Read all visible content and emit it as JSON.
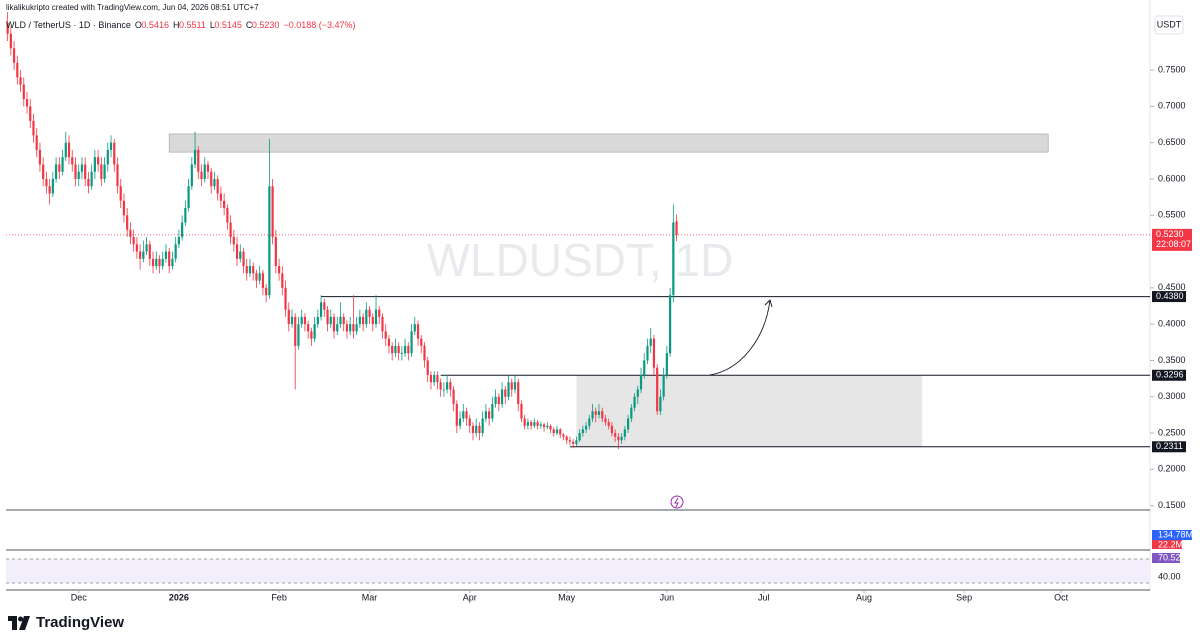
{
  "chart_data": {
    "type": "candlestick",
    "author_line": "likalikukripto created with TradingView.com, Jun 04, 2026 08:51 UTC+7",
    "symbol": "WLD / TetherUS · 1D · Binance",
    "ohlc": [
      {
        "key": "O",
        "value": "0.5416"
      },
      {
        "key": "H",
        "value": "0.5511"
      },
      {
        "key": "L",
        "value": "0.5145"
      },
      {
        "key": "C",
        "value": "0.5230"
      }
    ],
    "change": "−0.0188 (−3.47%)",
    "watermark": "WLDUSDT, 1D",
    "currency": "USDT",
    "brand": "TradingView",
    "up_color": "#089981",
    "down_color": "#f23645",
    "xlim": [
      -0.5,
      353.5
    ],
    "xticks": [
      {
        "value": 22,
        "label": "Dec"
      },
      {
        "value": 53,
        "label": "2026"
      },
      {
        "value": 84,
        "label": "Feb"
      },
      {
        "value": 112,
        "label": "Mar"
      },
      {
        "value": 143,
        "label": "Apr"
      },
      {
        "value": 173,
        "label": "May"
      },
      {
        "value": 204,
        "label": "Jun"
      },
      {
        "value": 234,
        "label": "Jul"
      },
      {
        "value": 265,
        "label": "Aug"
      },
      {
        "value": 296,
        "label": "Sep"
      },
      {
        "value": 326,
        "label": "Oct"
      }
    ],
    "ylim": [
      0.144,
      0.83
    ],
    "yticks": [
      {
        "value": 0.15,
        "label": "0.1500"
      },
      {
        "value": 0.2,
        "label": "0.2000"
      },
      {
        "value": 0.25,
        "label": "0.2500"
      },
      {
        "value": 0.3,
        "label": "0.3000"
      },
      {
        "value": 0.35,
        "label": "0.3500"
      },
      {
        "value": 0.4,
        "label": "0.4000"
      },
      {
        "value": 0.45,
        "label": "0.4500"
      },
      {
        "value": 0.55,
        "label": "0.5500"
      },
      {
        "value": 0.6,
        "label": "0.6000"
      },
      {
        "value": 0.65,
        "label": "0.6500"
      },
      {
        "value": 0.7,
        "label": "0.7000"
      },
      {
        "value": 0.75,
        "label": "0.7500"
      }
    ],
    "last": {
      "value": 0.523,
      "label": "0.5230",
      "countdown": "22:08:07"
    },
    "levels": [
      {
        "value": 0.438,
        "label": "0.4380",
        "from": 97
      },
      {
        "value": 0.3296,
        "label": "0.3296",
        "from": 134
      },
      {
        "value": 0.2311,
        "label": "0.2311",
        "from": 174
      }
    ],
    "zones": [
      {
        "from": 50,
        "to": 322,
        "top": 0.662,
        "bottom": 0.637
      },
      {
        "from": 176,
        "to": 283,
        "top": 0.3296,
        "bottom": 0.2311
      }
    ],
    "pane_labels": {
      "volume_ma": "134.78M",
      "volume": "22.2M",
      "rsi": "70.52",
      "rsi_level": "40.00"
    },
    "candles": [
      [
        0.815,
        0.83,
        0.79,
        0.8
      ],
      [
        0.8,
        0.81,
        0.77,
        0.78
      ],
      [
        0.78,
        0.79,
        0.75,
        0.76
      ],
      [
        0.76,
        0.77,
        0.73,
        0.74
      ],
      [
        0.74,
        0.75,
        0.72,
        0.73
      ],
      [
        0.73,
        0.74,
        0.7,
        0.71
      ],
      [
        0.71,
        0.72,
        0.69,
        0.7
      ],
      [
        0.7,
        0.71,
        0.67,
        0.68
      ],
      [
        0.68,
        0.69,
        0.65,
        0.66
      ],
      [
        0.66,
        0.67,
        0.63,
        0.64
      ],
      [
        0.64,
        0.65,
        0.61,
        0.62
      ],
      [
        0.62,
        0.63,
        0.59,
        0.6
      ],
      [
        0.6,
        0.61,
        0.58,
        0.59
      ],
      [
        0.59,
        0.6,
        0.565,
        0.58
      ],
      [
        0.58,
        0.61,
        0.575,
        0.6
      ],
      [
        0.6,
        0.63,
        0.595,
        0.62
      ],
      [
        0.62,
        0.63,
        0.6,
        0.61
      ],
      [
        0.61,
        0.64,
        0.605,
        0.63
      ],
      [
        0.63,
        0.665,
        0.625,
        0.65
      ],
      [
        0.65,
        0.66,
        0.62,
        0.63
      ],
      [
        0.63,
        0.64,
        0.61,
        0.62
      ],
      [
        0.62,
        0.63,
        0.59,
        0.6
      ],
      [
        0.6,
        0.62,
        0.59,
        0.61
      ],
      [
        0.61,
        0.63,
        0.6,
        0.62
      ],
      [
        0.62,
        0.63,
        0.59,
        0.6
      ],
      [
        0.6,
        0.61,
        0.58,
        0.59
      ],
      [
        0.59,
        0.62,
        0.585,
        0.61
      ],
      [
        0.61,
        0.64,
        0.6,
        0.63
      ],
      [
        0.63,
        0.64,
        0.61,
        0.62
      ],
      [
        0.62,
        0.63,
        0.59,
        0.6
      ],
      [
        0.6,
        0.63,
        0.595,
        0.62
      ],
      [
        0.62,
        0.65,
        0.61,
        0.64
      ],
      [
        0.64,
        0.66,
        0.63,
        0.65
      ],
      [
        0.65,
        0.655,
        0.61,
        0.62
      ],
      [
        0.62,
        0.63,
        0.58,
        0.59
      ],
      [
        0.59,
        0.6,
        0.56,
        0.57
      ],
      [
        0.57,
        0.58,
        0.54,
        0.55
      ],
      [
        0.55,
        0.56,
        0.52,
        0.53
      ],
      [
        0.53,
        0.54,
        0.51,
        0.52
      ],
      [
        0.52,
        0.53,
        0.5,
        0.51
      ],
      [
        0.51,
        0.52,
        0.49,
        0.5
      ],
      [
        0.5,
        0.51,
        0.475,
        0.49
      ],
      [
        0.49,
        0.515,
        0.485,
        0.5
      ],
      [
        0.5,
        0.52,
        0.495,
        0.51
      ],
      [
        0.51,
        0.515,
        0.48,
        0.49
      ],
      [
        0.49,
        0.5,
        0.47,
        0.48
      ],
      [
        0.48,
        0.5,
        0.475,
        0.49
      ],
      [
        0.49,
        0.495,
        0.47,
        0.48
      ],
      [
        0.48,
        0.5,
        0.475,
        0.49
      ],
      [
        0.49,
        0.51,
        0.485,
        0.5
      ],
      [
        0.5,
        0.505,
        0.47,
        0.48
      ],
      [
        0.48,
        0.5,
        0.475,
        0.49
      ],
      [
        0.49,
        0.52,
        0.485,
        0.51
      ],
      [
        0.51,
        0.53,
        0.505,
        0.52
      ],
      [
        0.52,
        0.55,
        0.515,
        0.54
      ],
      [
        0.54,
        0.57,
        0.535,
        0.56
      ],
      [
        0.56,
        0.6,
        0.555,
        0.59
      ],
      [
        0.59,
        0.63,
        0.585,
        0.62
      ],
      [
        0.62,
        0.665,
        0.615,
        0.64
      ],
      [
        0.64,
        0.645,
        0.6,
        0.61
      ],
      [
        0.61,
        0.62,
        0.59,
        0.6
      ],
      [
        0.6,
        0.63,
        0.595,
        0.62
      ],
      [
        0.62,
        0.625,
        0.6,
        0.61
      ],
      [
        0.61,
        0.615,
        0.58,
        0.59
      ],
      [
        0.59,
        0.61,
        0.585,
        0.6
      ],
      [
        0.6,
        0.605,
        0.57,
        0.58
      ],
      [
        0.58,
        0.59,
        0.56,
        0.57
      ],
      [
        0.57,
        0.58,
        0.55,
        0.56
      ],
      [
        0.56,
        0.565,
        0.53,
        0.54
      ],
      [
        0.54,
        0.55,
        0.51,
        0.52
      ],
      [
        0.52,
        0.53,
        0.5,
        0.51
      ],
      [
        0.51,
        0.52,
        0.48,
        0.49
      ],
      [
        0.49,
        0.51,
        0.485,
        0.5
      ],
      [
        0.5,
        0.505,
        0.47,
        0.48
      ],
      [
        0.48,
        0.49,
        0.46,
        0.47
      ],
      [
        0.47,
        0.49,
        0.465,
        0.48
      ],
      [
        0.48,
        0.485,
        0.46,
        0.47
      ],
      [
        0.47,
        0.475,
        0.45,
        0.46
      ],
      [
        0.46,
        0.48,
        0.455,
        0.47
      ],
      [
        0.47,
        0.475,
        0.44,
        0.45
      ],
      [
        0.45,
        0.455,
        0.43,
        0.44
      ],
      [
        0.44,
        0.655,
        0.435,
        0.59
      ],
      [
        0.59,
        0.6,
        0.51,
        0.52
      ],
      [
        0.52,
        0.53,
        0.47,
        0.48
      ],
      [
        0.48,
        0.49,
        0.46,
        0.47
      ],
      [
        0.47,
        0.48,
        0.44,
        0.45
      ],
      [
        0.45,
        0.46,
        0.41,
        0.42
      ],
      [
        0.42,
        0.43,
        0.39,
        0.4
      ],
      [
        0.4,
        0.42,
        0.395,
        0.41
      ],
      [
        0.41,
        0.415,
        0.31,
        0.37
      ],
      [
        0.37,
        0.41,
        0.365,
        0.4
      ],
      [
        0.4,
        0.42,
        0.395,
        0.41
      ],
      [
        0.41,
        0.415,
        0.39,
        0.4
      ],
      [
        0.4,
        0.405,
        0.38,
        0.39
      ],
      [
        0.39,
        0.395,
        0.37,
        0.38
      ],
      [
        0.38,
        0.41,
        0.375,
        0.4
      ],
      [
        0.4,
        0.42,
        0.395,
        0.41
      ],
      [
        0.41,
        0.44,
        0.405,
        0.43
      ],
      [
        0.43,
        0.435,
        0.41,
        0.42
      ],
      [
        0.42,
        0.425,
        0.39,
        0.4
      ],
      [
        0.4,
        0.42,
        0.395,
        0.41
      ],
      [
        0.41,
        0.415,
        0.38,
        0.39
      ],
      [
        0.39,
        0.41,
        0.385,
        0.4
      ],
      [
        0.4,
        0.43,
        0.395,
        0.41
      ],
      [
        0.41,
        0.415,
        0.39,
        0.4
      ],
      [
        0.4,
        0.405,
        0.38,
        0.39
      ],
      [
        0.39,
        0.41,
        0.385,
        0.4
      ],
      [
        0.4,
        0.44,
        0.38,
        0.39
      ],
      [
        0.39,
        0.41,
        0.385,
        0.4
      ],
      [
        0.4,
        0.42,
        0.395,
        0.41
      ],
      [
        0.41,
        0.415,
        0.39,
        0.4
      ],
      [
        0.4,
        0.43,
        0.395,
        0.42
      ],
      [
        0.42,
        0.425,
        0.4,
        0.41
      ],
      [
        0.41,
        0.415,
        0.39,
        0.4
      ],
      [
        0.4,
        0.44,
        0.395,
        0.42
      ],
      [
        0.42,
        0.425,
        0.4,
        0.41
      ],
      [
        0.41,
        0.415,
        0.38,
        0.39
      ],
      [
        0.39,
        0.4,
        0.37,
        0.38
      ],
      [
        0.38,
        0.385,
        0.36,
        0.37
      ],
      [
        0.37,
        0.375,
        0.35,
        0.36
      ],
      [
        0.36,
        0.38,
        0.355,
        0.37
      ],
      [
        0.37,
        0.375,
        0.35,
        0.36
      ],
      [
        0.36,
        0.37,
        0.35,
        0.36
      ],
      [
        0.36,
        0.38,
        0.355,
        0.37
      ],
      [
        0.37,
        0.375,
        0.35,
        0.36
      ],
      [
        0.36,
        0.4,
        0.355,
        0.39
      ],
      [
        0.39,
        0.41,
        0.385,
        0.4
      ],
      [
        0.4,
        0.405,
        0.37,
        0.38
      ],
      [
        0.38,
        0.385,
        0.36,
        0.37
      ],
      [
        0.37,
        0.375,
        0.34,
        0.35
      ],
      [
        0.35,
        0.355,
        0.32,
        0.33
      ],
      [
        0.33,
        0.335,
        0.31,
        0.32
      ],
      [
        0.32,
        0.335,
        0.315,
        0.33
      ],
      [
        0.33,
        0.335,
        0.31,
        0.32
      ],
      [
        0.32,
        0.325,
        0.3,
        0.31
      ],
      [
        0.31,
        0.32,
        0.3,
        0.31
      ],
      [
        0.31,
        0.33,
        0.305,
        0.32
      ],
      [
        0.32,
        0.325,
        0.3,
        0.31
      ],
      [
        0.31,
        0.315,
        0.28,
        0.29
      ],
      [
        0.29,
        0.295,
        0.25,
        0.26
      ],
      [
        0.26,
        0.28,
        0.255,
        0.27
      ],
      [
        0.27,
        0.29,
        0.265,
        0.28
      ],
      [
        0.28,
        0.285,
        0.26,
        0.27
      ],
      [
        0.27,
        0.275,
        0.25,
        0.26
      ],
      [
        0.26,
        0.265,
        0.24,
        0.25
      ],
      [
        0.25,
        0.27,
        0.245,
        0.26
      ],
      [
        0.26,
        0.265,
        0.24,
        0.25
      ],
      [
        0.25,
        0.28,
        0.245,
        0.27
      ],
      [
        0.27,
        0.29,
        0.265,
        0.28
      ],
      [
        0.28,
        0.285,
        0.26,
        0.27
      ],
      [
        0.27,
        0.3,
        0.265,
        0.29
      ],
      [
        0.29,
        0.31,
        0.285,
        0.3
      ],
      [
        0.3,
        0.305,
        0.28,
        0.29
      ],
      [
        0.29,
        0.32,
        0.285,
        0.31
      ],
      [
        0.31,
        0.315,
        0.29,
        0.3
      ],
      [
        0.3,
        0.33,
        0.295,
        0.32
      ],
      [
        0.32,
        0.325,
        0.3,
        0.31
      ],
      [
        0.31,
        0.33,
        0.305,
        0.32
      ],
      [
        0.32,
        0.325,
        0.28,
        0.29
      ],
      [
        0.29,
        0.295,
        0.265,
        0.27
      ],
      [
        0.27,
        0.275,
        0.255,
        0.26
      ],
      [
        0.26,
        0.27,
        0.255,
        0.265
      ],
      [
        0.265,
        0.268,
        0.255,
        0.26
      ],
      [
        0.26,
        0.27,
        0.257,
        0.265
      ],
      [
        0.265,
        0.268,
        0.255,
        0.26
      ],
      [
        0.26,
        0.266,
        0.256,
        0.262
      ],
      [
        0.262,
        0.264,
        0.252,
        0.258
      ],
      [
        0.258,
        0.265,
        0.255,
        0.26
      ],
      [
        0.26,
        0.262,
        0.25,
        0.255
      ],
      [
        0.255,
        0.258,
        0.245,
        0.25
      ],
      [
        0.25,
        0.26,
        0.247,
        0.255
      ],
      [
        0.255,
        0.257,
        0.243,
        0.248
      ],
      [
        0.248,
        0.25,
        0.24,
        0.245
      ],
      [
        0.245,
        0.247,
        0.235,
        0.24
      ],
      [
        0.24,
        0.245,
        0.233,
        0.238
      ],
      [
        0.238,
        0.242,
        0.229,
        0.235
      ],
      [
        0.235,
        0.245,
        0.232,
        0.24
      ],
      [
        0.24,
        0.255,
        0.238,
        0.25
      ],
      [
        0.25,
        0.26,
        0.245,
        0.255
      ],
      [
        0.255,
        0.265,
        0.25,
        0.26
      ],
      [
        0.26,
        0.275,
        0.255,
        0.27
      ],
      [
        0.27,
        0.29,
        0.265,
        0.28
      ],
      [
        0.28,
        0.285,
        0.265,
        0.275
      ],
      [
        0.275,
        0.29,
        0.27,
        0.28
      ],
      [
        0.28,
        0.285,
        0.265,
        0.27
      ],
      [
        0.27,
        0.275,
        0.26,
        0.265
      ],
      [
        0.265,
        0.27,
        0.255,
        0.26
      ],
      [
        0.26,
        0.265,
        0.245,
        0.25
      ],
      [
        0.25,
        0.255,
        0.238,
        0.245
      ],
      [
        0.245,
        0.25,
        0.228,
        0.24
      ],
      [
        0.24,
        0.25,
        0.235,
        0.245
      ],
      [
        0.245,
        0.26,
        0.24,
        0.255
      ],
      [
        0.255,
        0.275,
        0.25,
        0.27
      ],
      [
        0.27,
        0.29,
        0.265,
        0.285
      ],
      [
        0.285,
        0.305,
        0.28,
        0.3
      ],
      [
        0.3,
        0.315,
        0.29,
        0.31
      ],
      [
        0.31,
        0.34,
        0.305,
        0.33
      ],
      [
        0.33,
        0.36,
        0.325,
        0.35
      ],
      [
        0.35,
        0.38,
        0.345,
        0.37
      ],
      [
        0.37,
        0.395,
        0.36,
        0.38
      ],
      [
        0.38,
        0.385,
        0.33,
        0.34
      ],
      [
        0.34,
        0.345,
        0.275,
        0.28
      ],
      [
        0.28,
        0.31,
        0.275,
        0.3
      ],
      [
        0.3,
        0.34,
        0.295,
        0.33
      ],
      [
        0.33,
        0.37,
        0.325,
        0.36
      ],
      [
        0.36,
        0.45,
        0.355,
        0.44
      ],
      [
        0.44,
        0.565,
        0.43,
        0.54
      ],
      [
        0.5416,
        0.5511,
        0.5145,
        0.523
      ]
    ]
  }
}
